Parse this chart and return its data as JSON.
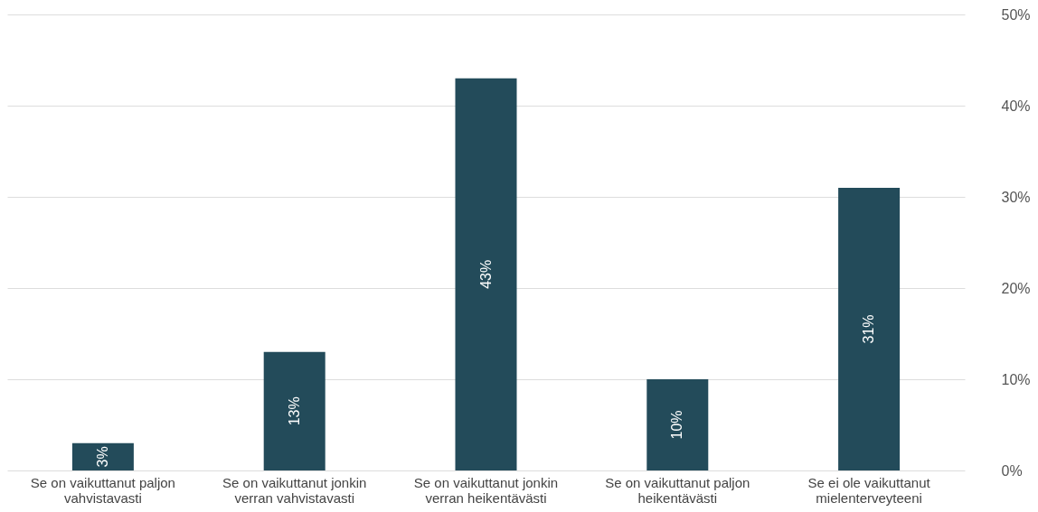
{
  "chart_data": {
    "type": "bar",
    "categories": [
      "Se on vaikuttanut paljon vahvistavasti",
      "Se on vaikuttanut jonkin verran vahvistavasti",
      "Se on vaikuttanut jonkin verran heikentävästi",
      "Se on vaikuttanut paljon heikentävästi",
      "Se ei ole vaikuttanut mielenterveyteeni"
    ],
    "values": [
      3,
      13,
      43,
      10,
      31
    ],
    "value_labels": [
      "3%",
      "13%",
      "43%",
      "10%",
      "31%"
    ],
    "color": "#234b5a",
    "ylim": [
      0,
      50
    ],
    "yticks": [
      {
        "value": 0,
        "label": "0%"
      },
      {
        "value": 10,
        "label": "10%"
      },
      {
        "value": 20,
        "label": "20%"
      },
      {
        "value": 30,
        "label": "30%"
      },
      {
        "value": 40,
        "label": "40%"
      },
      {
        "value": 50,
        "label": "50%"
      }
    ],
    "grid": "y"
  }
}
